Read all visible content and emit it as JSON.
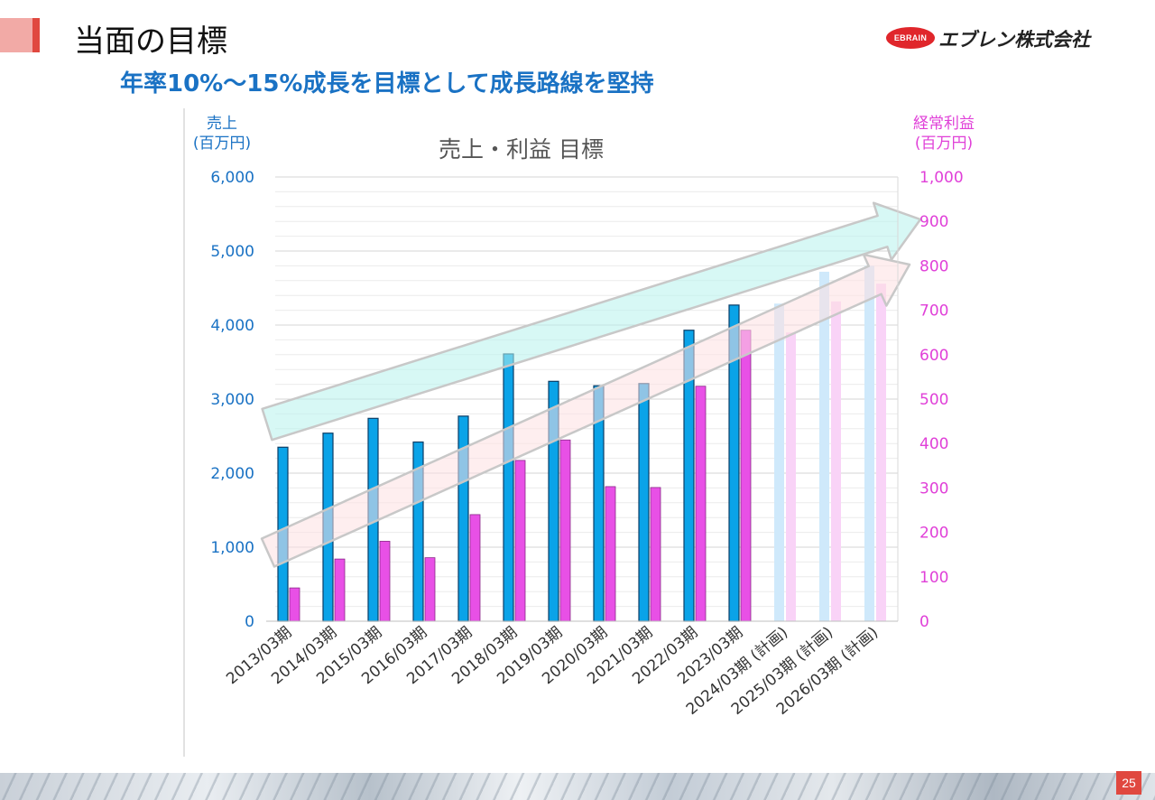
{
  "header": {
    "title": "当面の目標",
    "subtitle": "年率10%〜15%成長を目標として成長路線を堅持"
  },
  "logo": {
    "emblem_text": "EBRAIN",
    "company_name": "エブレン株式会社"
  },
  "page_number": "25",
  "colors": {
    "sales": "#0aa3e8",
    "profit": "#e850e6",
    "sales_plan": "#cfe9fb",
    "profit_plan": "#f9d3f7",
    "left_axis": "#1a72c4",
    "right_axis": "#e040d8",
    "accent_red": "#e0483f"
  },
  "chart_data": {
    "type": "bar",
    "title": "売上・利益 目標",
    "left_axis_title": [
      "売上",
      "(百万円)"
    ],
    "right_axis_title": [
      "経常利益",
      "(百万円)"
    ],
    "ylim_left": [
      0,
      6000
    ],
    "ylim_right": [
      0,
      1000
    ],
    "left_ticks": [
      "0",
      "1,000",
      "2,000",
      "3,000",
      "4,000",
      "5,000",
      "6,000"
    ],
    "right_ticks": [
      "0",
      "100",
      "200",
      "300",
      "400",
      "500",
      "600",
      "700",
      "800",
      "900",
      "1,000"
    ],
    "grid": true,
    "categories": [
      "2013/03期",
      "2014/03期",
      "2015/03期",
      "2016/03期",
      "2017/03期",
      "2018/03期",
      "2019/03期",
      "2020/03期",
      "2021/03期",
      "2022/03期",
      "2023/03期",
      "2024/03期 (計画)",
      "2025/03期 (計画)",
      "2026/03期 (計画)"
    ],
    "planned_from_index": 11,
    "series": [
      {
        "key": "sales",
        "axis": "left",
        "values": [
          2350,
          2540,
          2740,
          2420,
          2770,
          3610,
          3240,
          3180,
          3210,
          3930,
          4270,
          4290,
          4720,
          4800
        ]
      },
      {
        "key": "profit",
        "axis": "right",
        "values": [
          75,
          140,
          180,
          143,
          240,
          362,
          408,
          303,
          301,
          529,
          655,
          650,
          720,
          760
        ]
      }
    ],
    "annotations": [
      {
        "type": "arrow",
        "color": "teal",
        "meaning": "sales growth trend"
      },
      {
        "type": "arrow",
        "color": "pink",
        "meaning": "profit growth trend"
      }
    ]
  }
}
